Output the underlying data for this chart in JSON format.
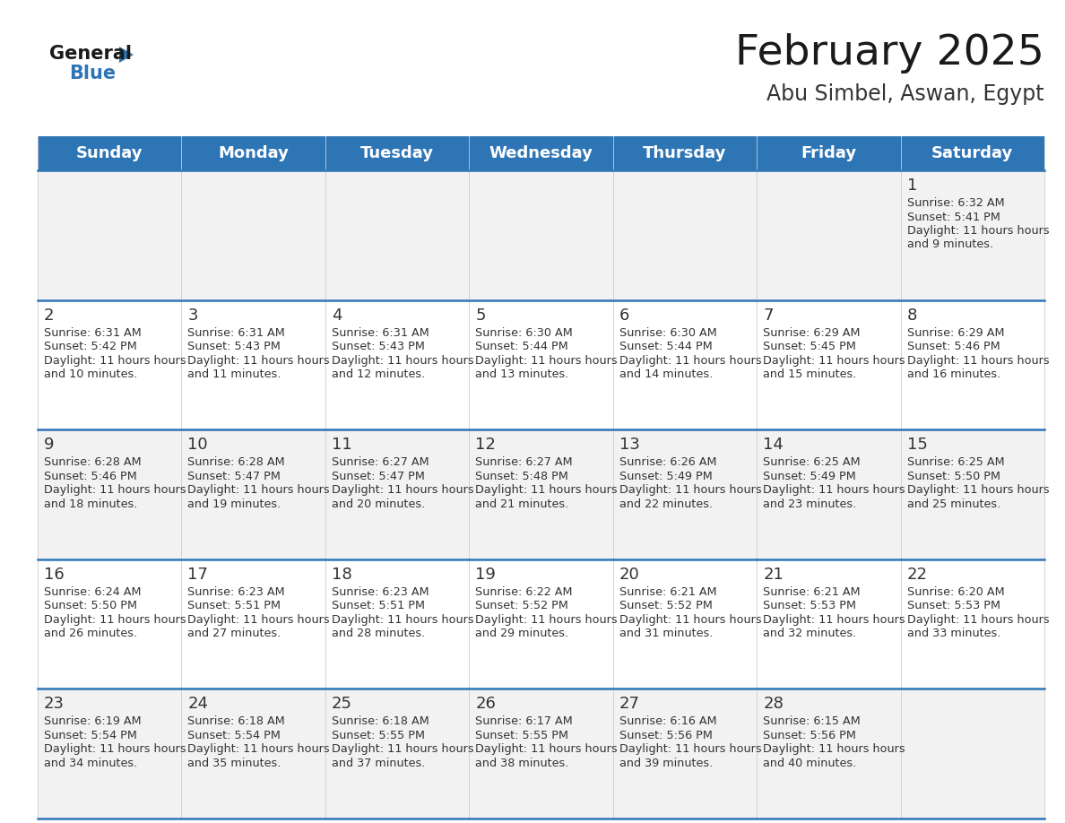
{
  "title": "February 2025",
  "subtitle": "Abu Simbel, Aswan, Egypt",
  "header_bg": "#2E75B6",
  "header_text": "#FFFFFF",
  "day_names": [
    "Sunday",
    "Monday",
    "Tuesday",
    "Wednesday",
    "Thursday",
    "Friday",
    "Saturday"
  ],
  "cell_bg_odd": "#F2F2F2",
  "cell_bg_even": "#FFFFFF",
  "divider_color": "#2E75B6",
  "text_color": "#333333",
  "date_color": "#333333",
  "calendar_data": [
    [
      null,
      null,
      null,
      null,
      null,
      null,
      {
        "day": 1,
        "sunrise": "6:32 AM",
        "sunset": "5:41 PM",
        "daylight": "11 hours and 9 minutes."
      }
    ],
    [
      {
        "day": 2,
        "sunrise": "6:31 AM",
        "sunset": "5:42 PM",
        "daylight": "11 hours and 10 minutes."
      },
      {
        "day": 3,
        "sunrise": "6:31 AM",
        "sunset": "5:43 PM",
        "daylight": "11 hours and 11 minutes."
      },
      {
        "day": 4,
        "sunrise": "6:31 AM",
        "sunset": "5:43 PM",
        "daylight": "11 hours and 12 minutes."
      },
      {
        "day": 5,
        "sunrise": "6:30 AM",
        "sunset": "5:44 PM",
        "daylight": "11 hours and 13 minutes."
      },
      {
        "day": 6,
        "sunrise": "6:30 AM",
        "sunset": "5:44 PM",
        "daylight": "11 hours and 14 minutes."
      },
      {
        "day": 7,
        "sunrise": "6:29 AM",
        "sunset": "5:45 PM",
        "daylight": "11 hours and 15 minutes."
      },
      {
        "day": 8,
        "sunrise": "6:29 AM",
        "sunset": "5:46 PM",
        "daylight": "11 hours and 16 minutes."
      }
    ],
    [
      {
        "day": 9,
        "sunrise": "6:28 AM",
        "sunset": "5:46 PM",
        "daylight": "11 hours and 18 minutes."
      },
      {
        "day": 10,
        "sunrise": "6:28 AM",
        "sunset": "5:47 PM",
        "daylight": "11 hours and 19 minutes."
      },
      {
        "day": 11,
        "sunrise": "6:27 AM",
        "sunset": "5:47 PM",
        "daylight": "11 hours and 20 minutes."
      },
      {
        "day": 12,
        "sunrise": "6:27 AM",
        "sunset": "5:48 PM",
        "daylight": "11 hours and 21 minutes."
      },
      {
        "day": 13,
        "sunrise": "6:26 AM",
        "sunset": "5:49 PM",
        "daylight": "11 hours and 22 minutes."
      },
      {
        "day": 14,
        "sunrise": "6:25 AM",
        "sunset": "5:49 PM",
        "daylight": "11 hours and 23 minutes."
      },
      {
        "day": 15,
        "sunrise": "6:25 AM",
        "sunset": "5:50 PM",
        "daylight": "11 hours and 25 minutes."
      }
    ],
    [
      {
        "day": 16,
        "sunrise": "6:24 AM",
        "sunset": "5:50 PM",
        "daylight": "11 hours and 26 minutes."
      },
      {
        "day": 17,
        "sunrise": "6:23 AM",
        "sunset": "5:51 PM",
        "daylight": "11 hours and 27 minutes."
      },
      {
        "day": 18,
        "sunrise": "6:23 AM",
        "sunset": "5:51 PM",
        "daylight": "11 hours and 28 minutes."
      },
      {
        "day": 19,
        "sunrise": "6:22 AM",
        "sunset": "5:52 PM",
        "daylight": "11 hours and 29 minutes."
      },
      {
        "day": 20,
        "sunrise": "6:21 AM",
        "sunset": "5:52 PM",
        "daylight": "11 hours and 31 minutes."
      },
      {
        "day": 21,
        "sunrise": "6:21 AM",
        "sunset": "5:53 PM",
        "daylight": "11 hours and 32 minutes."
      },
      {
        "day": 22,
        "sunrise": "6:20 AM",
        "sunset": "5:53 PM",
        "daylight": "11 hours and 33 minutes."
      }
    ],
    [
      {
        "day": 23,
        "sunrise": "6:19 AM",
        "sunset": "5:54 PM",
        "daylight": "11 hours and 34 minutes."
      },
      {
        "day": 24,
        "sunrise": "6:18 AM",
        "sunset": "5:54 PM",
        "daylight": "11 hours and 35 minutes."
      },
      {
        "day": 25,
        "sunrise": "6:18 AM",
        "sunset": "5:55 PM",
        "daylight": "11 hours and 37 minutes."
      },
      {
        "day": 26,
        "sunrise": "6:17 AM",
        "sunset": "5:55 PM",
        "daylight": "11 hours and 38 minutes."
      },
      {
        "day": 27,
        "sunrise": "6:16 AM",
        "sunset": "5:56 PM",
        "daylight": "11 hours and 39 minutes."
      },
      {
        "day": 28,
        "sunrise": "6:15 AM",
        "sunset": "5:56 PM",
        "daylight": "11 hours and 40 minutes."
      },
      null
    ]
  ],
  "logo_triangle_color": "#2E75B6",
  "fig_width": 11.88,
  "fig_height": 9.18,
  "dpi": 100
}
